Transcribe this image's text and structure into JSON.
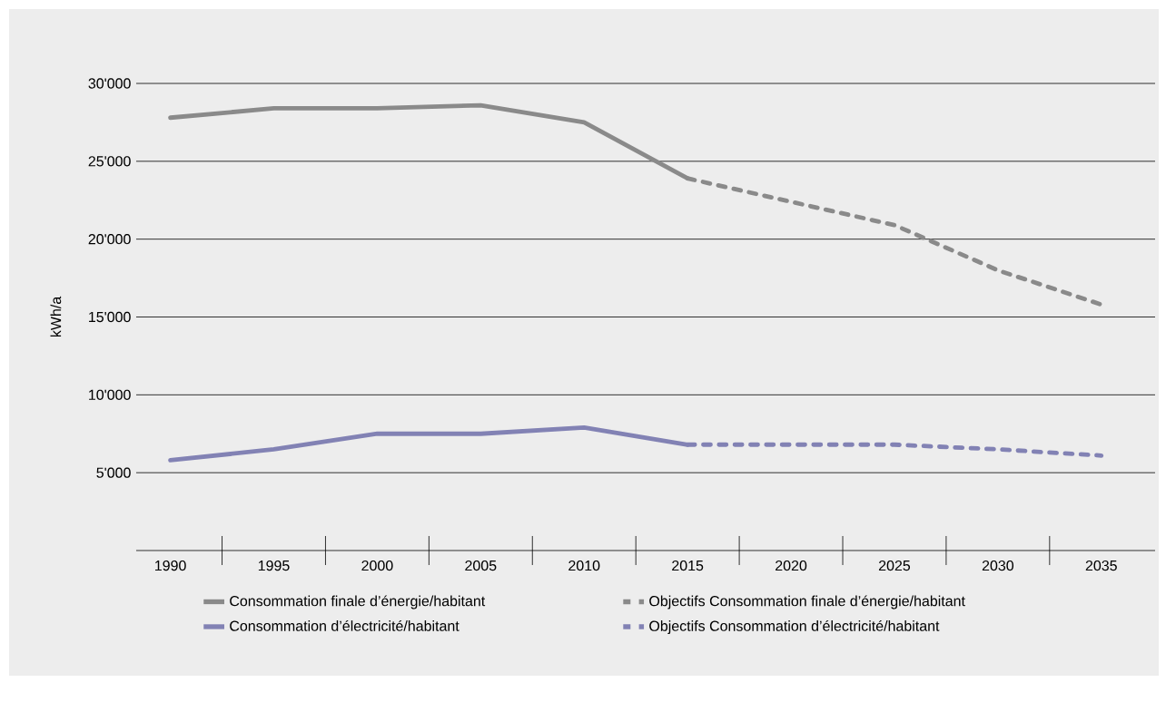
{
  "chart_data": {
    "type": "line",
    "ylabel": "kWh/a",
    "categories": [
      "1990",
      "1995",
      "2000",
      "2005",
      "2010",
      "2015",
      "2020",
      "2025",
      "2030",
      "2035"
    ],
    "series": [
      {
        "name": "Consommation finale d’énergie/habitant",
        "color": "#8a8a8a",
        "line_style": "solid",
        "values": [
          27800,
          28400,
          28400,
          28600,
          27500,
          23900,
          null,
          null,
          null,
          null
        ]
      },
      {
        "name": "Objectifs Consommation finale d’énergie/habitant",
        "color": "#8a8a8a",
        "line_style": "dashed",
        "values": [
          null,
          null,
          null,
          null,
          null,
          23900,
          22400,
          20900,
          18000,
          15800
        ]
      },
      {
        "name": "Consommation d’électricité/habitant",
        "color": "#8282b4",
        "line_style": "solid",
        "values": [
          5800,
          6500,
          7500,
          7500,
          7900,
          6800,
          null,
          null,
          null,
          null
        ]
      },
      {
        "name": "Objectifs Consommation d’électricité/habitant",
        "color": "#8282b4",
        "line_style": "dashed",
        "values": [
          null,
          null,
          null,
          null,
          null,
          6800,
          6800,
          6800,
          6500,
          6100
        ]
      }
    ],
    "ylim": [
      0,
      30000
    ],
    "yticks": [
      {
        "value": 5000,
        "label": "5'000"
      },
      {
        "value": 10000,
        "label": "10'000"
      },
      {
        "value": 15000,
        "label": "15'000"
      },
      {
        "value": 20000,
        "label": "20'000"
      },
      {
        "value": 25000,
        "label": "25'000"
      },
      {
        "value": 30000,
        "label": "30'000"
      }
    ],
    "grid": "y",
    "legend": "bottom",
    "marker": "none"
  }
}
